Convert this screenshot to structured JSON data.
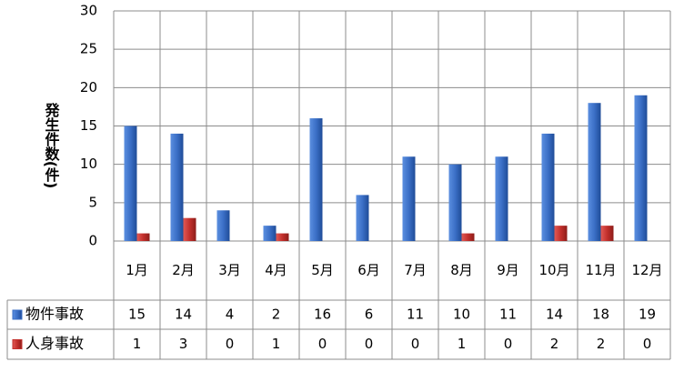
{
  "chart_data": {
    "type": "bar",
    "y_label": "発生件数(件)",
    "categories": [
      "1月",
      "2月",
      "3月",
      "4月",
      "5月",
      "6月",
      "7月",
      "8月",
      "9月",
      "10月",
      "11月",
      "12月"
    ],
    "series": [
      {
        "name": "物件事故",
        "color": "#3b6fc6",
        "values": [
          15,
          14,
          4,
          2,
          16,
          6,
          11,
          10,
          11,
          14,
          18,
          19
        ]
      },
      {
        "name": "人身事故",
        "color": "#c3302c",
        "values": [
          1,
          3,
          0,
          1,
          0,
          0,
          0,
          1,
          0,
          2,
          2,
          0
        ]
      }
    ],
    "ylim": [
      0,
      30
    ],
    "yticks": [
      0,
      5,
      10,
      15,
      20,
      25,
      30
    ],
    "grid": true
  }
}
